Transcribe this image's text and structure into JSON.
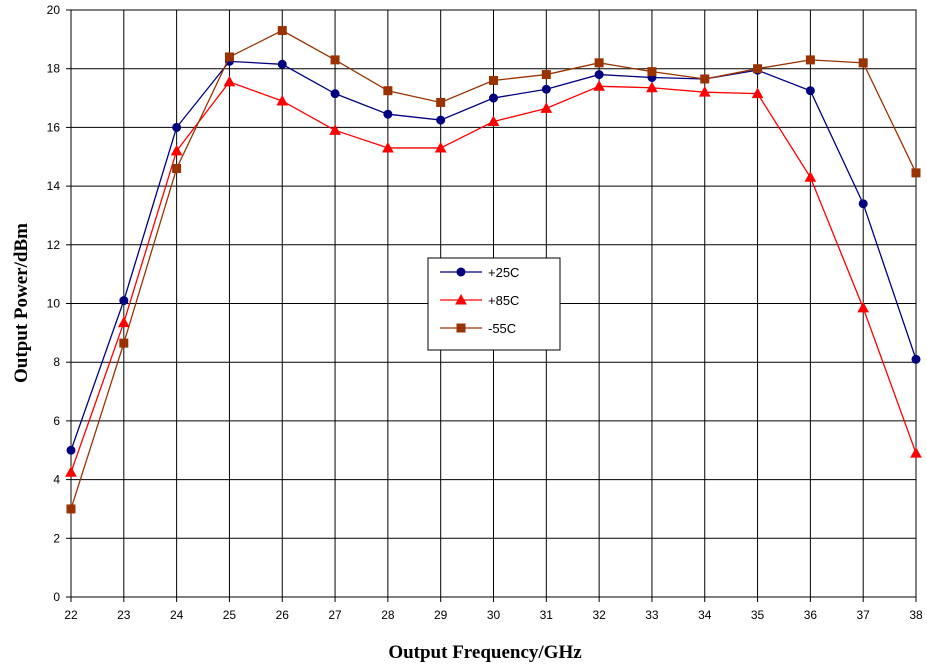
{
  "chart_data": {
    "type": "line",
    "xlabel": "Output Frequency/GHz",
    "ylabel": "Output Power/dBm",
    "xlim": [
      22,
      38
    ],
    "ylim": [
      0,
      20
    ],
    "xticks": [
      22,
      23,
      24,
      25,
      26,
      27,
      28,
      29,
      30,
      31,
      32,
      33,
      34,
      35,
      36,
      37,
      38
    ],
    "yticks": [
      0,
      2,
      4,
      6,
      8,
      10,
      12,
      14,
      16,
      18,
      20
    ],
    "grid": true,
    "legend_position": "center",
    "x": [
      22,
      23,
      24,
      25,
      26,
      27,
      28,
      29,
      30,
      31,
      32,
      33,
      34,
      35,
      36,
      37,
      38
    ],
    "series": [
      {
        "name": "+25C",
        "color": "#000080",
        "marker": "circle",
        "values": [
          5.0,
          10.1,
          16.0,
          18.25,
          18.15,
          17.15,
          16.45,
          16.25,
          17.0,
          17.3,
          17.8,
          17.7,
          17.65,
          17.95,
          17.25,
          13.4,
          8.1
        ]
      },
      {
        "name": "+85C",
        "color": "#FF0000",
        "marker": "triangle",
        "values": [
          4.25,
          9.35,
          15.2,
          17.55,
          16.9,
          15.9,
          15.3,
          15.3,
          16.2,
          16.65,
          17.4,
          17.35,
          17.2,
          17.15,
          14.3,
          9.85,
          4.9
        ]
      },
      {
        "name": "-55C",
        "color": "#993300",
        "marker": "square",
        "values": [
          3.0,
          8.65,
          14.6,
          18.4,
          19.3,
          18.3,
          17.25,
          16.85,
          17.6,
          17.8,
          18.2,
          17.9,
          17.65,
          18.0,
          18.3,
          18.2,
          14.45
        ]
      }
    ]
  }
}
